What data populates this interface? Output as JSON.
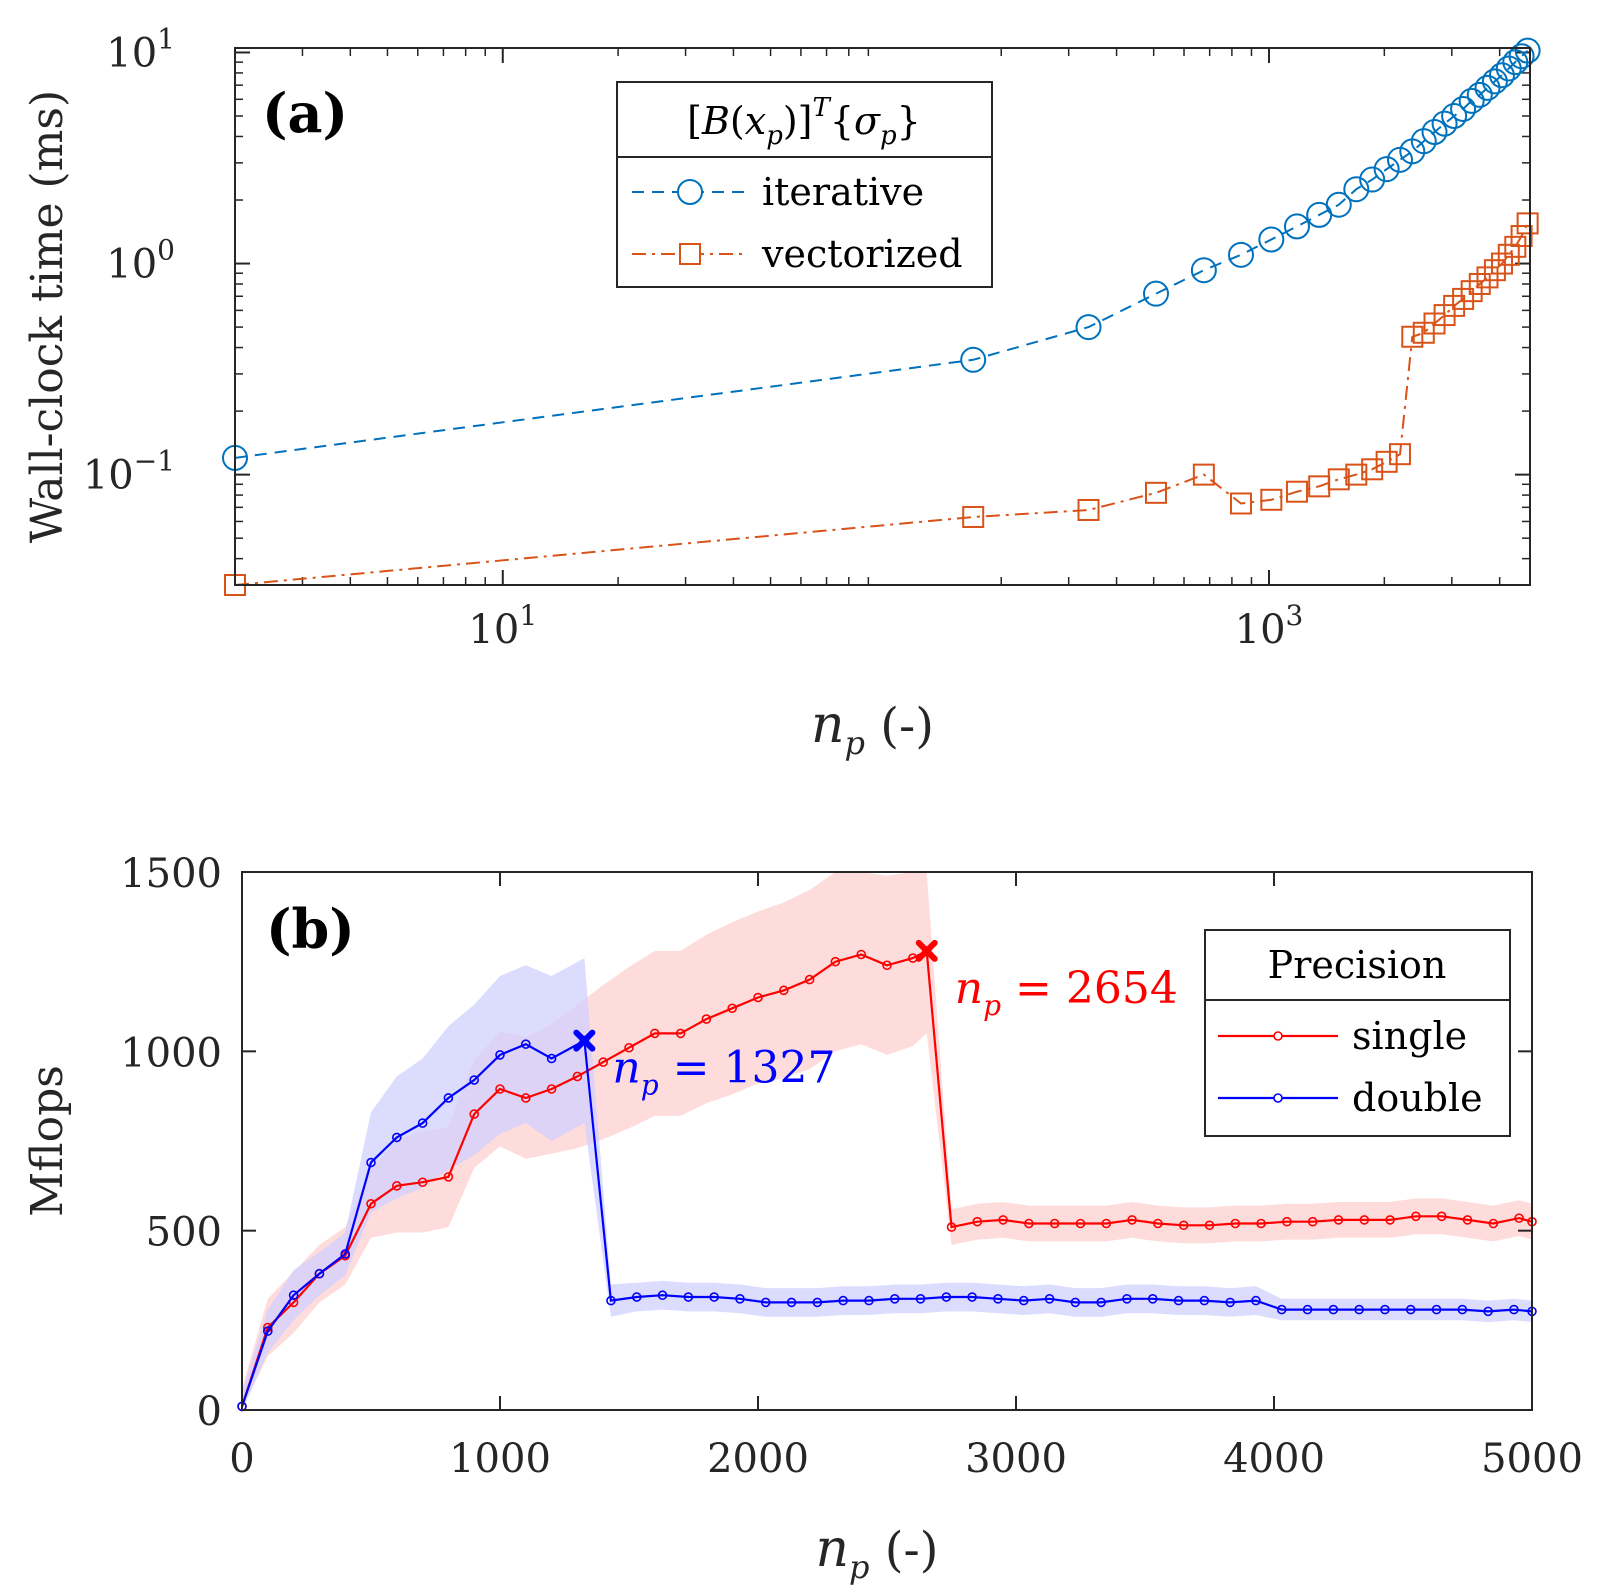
{
  "chart_data": [
    {
      "type": "line",
      "panel_label": "(a)",
      "xscale": "log",
      "yscale": "log",
      "xlabel": "n_p (-)",
      "xlabel_var": "n",
      "xlabel_sub": "p",
      "xlabel_unit": "(-)",
      "ylabel": "Wall-clock time (ms)",
      "xlim": [
        2,
        4800
      ],
      "ylim": [
        0.03,
        10.5
      ],
      "xticks": [
        {
          "value": 10,
          "base": "10",
          "exp": "1"
        },
        {
          "value": 1000,
          "base": "10",
          "exp": "3"
        }
      ],
      "yticks": [
        {
          "value": 0.1,
          "base": "10",
          "exp": "−1"
        },
        {
          "value": 1,
          "base": "10",
          "exp": "0"
        },
        {
          "value": 10,
          "base": "10",
          "exp": "1"
        }
      ],
      "legend": {
        "title": "[B(x_p)]^T {σ_p}",
        "position": "top-center",
        "entries": [
          "iterative",
          "vectorized"
        ]
      },
      "series": [
        {
          "name": "iterative",
          "color": "#0072BD",
          "marker": "circle",
          "linestyle": "dashed",
          "x": [
            2,
            169,
            338,
            507,
            676,
            845,
            1014,
            1183,
            1352,
            1521,
            1690,
            1859,
            2028,
            2197,
            2366,
            2535,
            2704,
            2873,
            3042,
            3211,
            3380,
            3549,
            3718,
            3887,
            4056,
            4225,
            4394,
            4563,
            4732
          ],
          "y": [
            0.12,
            0.35,
            0.5,
            0.72,
            0.93,
            1.1,
            1.3,
            1.5,
            1.7,
            1.9,
            2.25,
            2.5,
            2.8,
            3.1,
            3.4,
            3.8,
            4.2,
            4.6,
            5.0,
            5.4,
            5.9,
            6.3,
            6.8,
            7.3,
            7.8,
            8.4,
            9.0,
            9.6,
            10.2
          ]
        },
        {
          "name": "vectorized",
          "color": "#D95319",
          "marker": "square",
          "linestyle": "dashdot",
          "x": [
            2,
            169,
            338,
            507,
            676,
            845,
            1014,
            1183,
            1352,
            1521,
            1690,
            1859,
            2028,
            2197,
            2366,
            2535,
            2704,
            2873,
            3042,
            3211,
            3380,
            3549,
            3718,
            3887,
            4056,
            4225,
            4394,
            4563,
            4732
          ],
          "y": [
            0.03,
            0.063,
            0.068,
            0.082,
            0.1,
            0.073,
            0.076,
            0.083,
            0.088,
            0.095,
            0.1,
            0.106,
            0.115,
            0.125,
            0.45,
            0.47,
            0.52,
            0.57,
            0.63,
            0.68,
            0.74,
            0.8,
            0.86,
            0.93,
            1.0,
            1.1,
            1.2,
            1.35,
            1.55
          ]
        }
      ]
    },
    {
      "type": "line",
      "panel_label": "(b)",
      "xlabel": "n_p (-)",
      "xlabel_var": "n",
      "xlabel_sub": "p",
      "xlabel_unit": "(-)",
      "ylabel": "Mflops",
      "xlim": [
        0,
        5000
      ],
      "ylim": [
        0,
        1500
      ],
      "xticks": [
        "0",
        "1000",
        "2000",
        "3000",
        "4000",
        "5000"
      ],
      "yticks": [
        "0",
        "500",
        "1000",
        "1500"
      ],
      "legend": {
        "title": "Precision",
        "position": "top-right",
        "entries": [
          "single",
          "double"
        ]
      },
      "annotations": [
        {
          "text_var": "n",
          "text_sub": "p",
          "text_rest": " = 1327",
          "x": 1327,
          "y": 1030,
          "color": "#0000FF"
        },
        {
          "text_var": "n",
          "text_sub": "p",
          "text_rest": " = 2654",
          "x": 2654,
          "y": 1280,
          "color": "#FF0000"
        }
      ],
      "series": [
        {
          "name": "single",
          "color": "#FF0000",
          "band_color": "#FFD0D0",
          "x": [
            0,
            100,
            200,
            300,
            400,
            500,
            600,
            700,
            800,
            900,
            1000,
            1100,
            1200,
            1300,
            1400,
            1500,
            1600,
            1700,
            1800,
            1900,
            2000,
            2100,
            2200,
            2300,
            2400,
            2500,
            2600,
            2654,
            2750,
            2850,
            2950,
            3050,
            3150,
            3250,
            3350,
            3450,
            3550,
            3650,
            3750,
            3850,
            3950,
            4050,
            4150,
            4250,
            4350,
            4450,
            4550,
            4650,
            4750,
            4850,
            4950,
            5000
          ],
          "y": [
            10,
            230,
            300,
            380,
            430,
            575,
            625,
            635,
            650,
            825,
            895,
            870,
            895,
            930,
            970,
            1010,
            1050,
            1050,
            1090,
            1120,
            1150,
            1170,
            1200,
            1250,
            1270,
            1240,
            1260,
            1280,
            510,
            525,
            530,
            520,
            520,
            520,
            520,
            530,
            520,
            515,
            515,
            520,
            520,
            525,
            525,
            530,
            530,
            530,
            540,
            540,
            530,
            520,
            535,
            525
          ],
          "band": [
            50,
            80,
            85,
            80,
            80,
            95,
            130,
            140,
            140,
            150,
            160,
            170,
            180,
            200,
            215,
            225,
            230,
            230,
            235,
            240,
            240,
            245,
            250,
            250,
            250,
            250,
            245,
            230,
            50,
            50,
            50,
            50,
            50,
            50,
            50,
            50,
            50,
            50,
            50,
            50,
            50,
            50,
            50,
            50,
            50,
            50,
            50,
            50,
            50,
            50,
            50,
            50
          ]
        },
        {
          "name": "double",
          "color": "#0000FF",
          "band_color": "#D0D0FF",
          "x": [
            0,
            100,
            200,
            300,
            400,
            500,
            600,
            700,
            800,
            900,
            1000,
            1100,
            1200,
            1327,
            1430,
            1530,
            1630,
            1730,
            1830,
            1930,
            2030,
            2130,
            2230,
            2330,
            2430,
            2530,
            2630,
            2730,
            2830,
            2930,
            3030,
            3130,
            3230,
            3330,
            3430,
            3530,
            3630,
            3730,
            3830,
            3930,
            4030,
            4130,
            4230,
            4330,
            4430,
            4530,
            4630,
            4730,
            4830,
            4930,
            5000
          ],
          "y": [
            10,
            220,
            320,
            380,
            435,
            690,
            760,
            800,
            870,
            920,
            990,
            1020,
            980,
            1030,
            305,
            315,
            320,
            315,
            315,
            310,
            300,
            300,
            300,
            305,
            305,
            310,
            310,
            315,
            315,
            310,
            305,
            310,
            300,
            300,
            310,
            310,
            305,
            305,
            300,
            305,
            280,
            280,
            280,
            280,
            280,
            280,
            280,
            280,
            275,
            280,
            275
          ],
          "band": [
            40,
            60,
            70,
            60,
            60,
            140,
            170,
            180,
            200,
            210,
            220,
            220,
            230,
            230,
            45,
            40,
            40,
            40,
            40,
            40,
            40,
            40,
            40,
            40,
            40,
            40,
            40,
            40,
            40,
            40,
            40,
            40,
            40,
            40,
            40,
            40,
            40,
            40,
            40,
            40,
            30,
            30,
            30,
            30,
            30,
            30,
            30,
            30,
            30,
            30,
            30
          ]
        }
      ]
    }
  ]
}
